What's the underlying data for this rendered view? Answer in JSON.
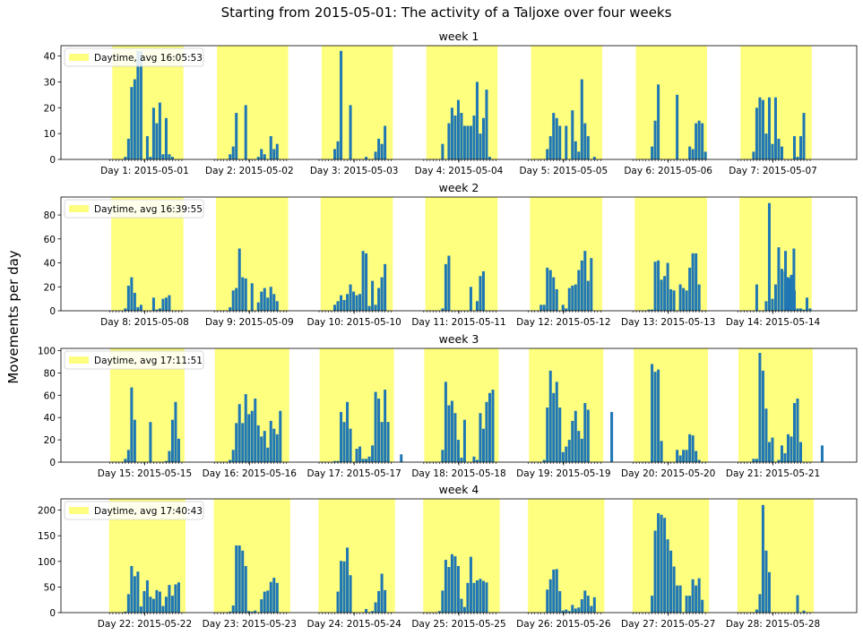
{
  "figure": {
    "suptitle": "Starting from 2015-05-01: The activity of a Taljoxe over four weeks",
    "ylabel": "Movements per day"
  },
  "colors": {
    "bar": "#1f77b4",
    "daytime": "#ffff7f",
    "axis": "#000000"
  },
  "chart_data": [
    {
      "type": "bar",
      "title": "week 1",
      "legend": "Daytime, avg 16:05:53",
      "legend_position": "upper-left",
      "ylim": [
        0,
        44
      ],
      "yticks": [
        0,
        10,
        20,
        30,
        40
      ],
      "xlim": [
        -0.3,
        7.3
      ],
      "xticks": [
        1,
        2,
        3,
        4,
        5,
        6,
        7
      ],
      "xtick_labels": [
        "Day 1: 2015-05-01",
        "Day 2: 2015-05-02",
        "Day 3: 2015-05-03",
        "Day 4: 2015-05-04",
        "Day 5: 2015-05-05",
        "Day 6: 2015-05-06",
        "Day 7: 2015-05-07"
      ],
      "daytime_spans": [
        [
          0.19,
          0.87
        ],
        [
          1.19,
          1.87
        ],
        [
          2.19,
          2.87
        ],
        [
          3.19,
          3.87
        ],
        [
          4.19,
          4.87
        ],
        [
          5.19,
          5.87
        ],
        [
          6.19,
          6.87
        ]
      ],
      "bar_width": 0.03,
      "days": [
        [
          0,
          0,
          0,
          0,
          0,
          1,
          8,
          28,
          31,
          42,
          42,
          0,
          9,
          1,
          20,
          14,
          22,
          2,
          16,
          2,
          1,
          0,
          0,
          0
        ],
        [
          0,
          0,
          0,
          0,
          0,
          2,
          5,
          18,
          0,
          0,
          21,
          0,
          0,
          0,
          1,
          4,
          2,
          0,
          9,
          4,
          6,
          0,
          0,
          0
        ],
        [
          0,
          0,
          0,
          0,
          0,
          4,
          7,
          42,
          0,
          0,
          21,
          0,
          0,
          0,
          0,
          1,
          0,
          0,
          3,
          8,
          6,
          13,
          0,
          0
        ],
        [
          0,
          0,
          0,
          0,
          0,
          0,
          6,
          0,
          14,
          20,
          17,
          23,
          18,
          13,
          13,
          13,
          17,
          30,
          10,
          16,
          27,
          1,
          0,
          0
        ],
        [
          0,
          0,
          0,
          0,
          0,
          0,
          4,
          9,
          18,
          16,
          13,
          0,
          13,
          0,
          19,
          7,
          3,
          31,
          14,
          9,
          0,
          1,
          0,
          0
        ],
        [
          0,
          0,
          0,
          0,
          0,
          0,
          5,
          15,
          29,
          0,
          0,
          0,
          0,
          0,
          25,
          0,
          0,
          0,
          5,
          4,
          14,
          15,
          14,
          3
        ],
        [
          0,
          0,
          0,
          0,
          0,
          3,
          20,
          24,
          23,
          10,
          24,
          6,
          24,
          8,
          5,
          0,
          0,
          0,
          9,
          1,
          9,
          18,
          0,
          0
        ]
      ]
    },
    {
      "type": "bar",
      "title": "week 2",
      "legend": "Daytime, avg 16:39:55",
      "legend_position": "upper-left",
      "ylim": [
        0,
        95
      ],
      "yticks": [
        0,
        20,
        40,
        60,
        80
      ],
      "xlim": [
        -0.3,
        7.3
      ],
      "xticks": [
        1,
        2,
        3,
        4,
        5,
        6,
        7
      ],
      "xtick_labels": [
        "Day 8: 2015-05-08",
        "Day 9: 2015-05-09",
        "Day 10: 2015-05-10",
        "Day 11: 2015-05-11",
        "Day 12: 2015-05-12",
        "Day 13: 2015-05-13",
        "Day 14: 2015-05-14"
      ],
      "daytime_spans": [
        [
          0.18,
          0.87
        ],
        [
          1.18,
          1.87
        ],
        [
          2.18,
          2.87
        ],
        [
          3.18,
          3.87
        ],
        [
          4.18,
          4.87
        ],
        [
          5.18,
          5.87
        ],
        [
          6.18,
          6.87
        ]
      ],
      "bar_width": 0.03,
      "days": [
        [
          0,
          0,
          0,
          0,
          0,
          2,
          21,
          28,
          15,
          3,
          5,
          0,
          0,
          0,
          11,
          1,
          2,
          10,
          11,
          13,
          0,
          0,
          0,
          0
        ],
        [
          0,
          0,
          0,
          0,
          0,
          3,
          17,
          19,
          52,
          28,
          27,
          0,
          23,
          0,
          7,
          16,
          19,
          11,
          20,
          14,
          8,
          0,
          0,
          0
        ],
        [
          0,
          0,
          0,
          0,
          0,
          5,
          8,
          13,
          9,
          14,
          22,
          16,
          13,
          14,
          50,
          48,
          4,
          25,
          5,
          19,
          28,
          39,
          0,
          0
        ],
        [
          0,
          0,
          0,
          0,
          0,
          0,
          2,
          39,
          46,
          0,
          0,
          0,
          0,
          0,
          0,
          20,
          0,
          8,
          29,
          33,
          0,
          0,
          0,
          0
        ],
        [
          0,
          0,
          0,
          0,
          5,
          5,
          36,
          34,
          28,
          18,
          0,
          5,
          2,
          19,
          21,
          22,
          34,
          42,
          50,
          25,
          44,
          0,
          0,
          0
        ],
        [
          0,
          0,
          0,
          0,
          0,
          1,
          1,
          41,
          42,
          26,
          29,
          40,
          18,
          17,
          0,
          22,
          19,
          17,
          36,
          48,
          48,
          22,
          0,
          0
        ],
        [
          0,
          0,
          0,
          0,
          0,
          0,
          22,
          0,
          0,
          8,
          90,
          10,
          22,
          53,
          35,
          33,
          28,
          30,
          17,
          2,
          2,
          1,
          11,
          2
        ]
      ],
      "extra": [
        [
          6.62,
          50
        ],
        [
          6.66,
          27
        ],
        [
          6.7,
          52
        ]
      ]
    },
    {
      "type": "bar",
      "title": "week 3",
      "legend": "Daytime, avg 17:11:51",
      "legend_position": "upper-left",
      "ylim": [
        0,
        102
      ],
      "yticks": [
        0,
        20,
        40,
        60,
        80,
        100
      ],
      "xlim": [
        -0.3,
        7.3
      ],
      "xticks": [
        1,
        2,
        3,
        4,
        5,
        6,
        7
      ],
      "xtick_labels": [
        "Day 15: 2015-05-15",
        "Day 16: 2015-05-16",
        "Day 17: 2015-05-17",
        "Day 18: 2015-05-18",
        "Day 19: 2015-05-19",
        "Day 20: 2015-05-20",
        "Day 21: 2015-05-21"
      ],
      "daytime_spans": [
        [
          0.17,
          0.88
        ],
        [
          1.17,
          1.88
        ],
        [
          2.17,
          2.88
        ],
        [
          3.17,
          3.88
        ],
        [
          4.17,
          4.88
        ],
        [
          5.17,
          5.88
        ],
        [
          6.17,
          6.88
        ]
      ],
      "bar_width": 0.03,
      "days": [
        [
          0,
          0,
          0,
          0,
          0,
          3,
          11,
          67,
          38,
          0,
          0,
          0,
          0,
          36,
          0,
          0,
          0,
          0,
          1,
          10,
          38,
          54,
          21,
          0
        ],
        [
          0,
          0,
          0,
          0,
          0,
          2,
          11,
          35,
          52,
          35,
          61,
          43,
          46,
          57,
          33,
          23,
          28,
          13,
          37,
          30,
          25,
          46,
          0,
          0
        ],
        [
          0,
          0,
          0,
          0,
          0,
          1,
          1,
          45,
          36,
          54,
          30,
          0,
          12,
          14,
          3,
          3,
          5,
          15,
          63,
          57,
          36,
          65,
          36,
          0
        ],
        [
          0,
          0,
          0,
          0,
          0,
          0,
          11,
          72,
          51,
          55,
          44,
          20,
          4,
          38,
          0,
          0,
          5,
          2,
          44,
          30,
          54,
          62,
          65,
          0
        ],
        [
          0,
          0,
          0,
          0,
          0,
          2,
          49,
          82,
          62,
          72,
          49,
          9,
          14,
          20,
          37,
          46,
          28,
          21,
          53,
          47,
          0,
          0,
          0,
          0
        ],
        [
          0,
          0,
          0,
          0,
          0,
          0,
          88,
          81,
          83,
          19,
          0,
          0,
          0,
          0,
          11,
          6,
          11,
          11,
          25,
          24,
          10,
          2,
          0,
          0
        ],
        [
          0,
          0,
          0,
          0,
          0,
          3,
          3,
          98,
          82,
          48,
          18,
          22,
          0,
          2,
          15,
          8,
          25,
          23,
          53,
          57,
          18,
          0,
          0,
          0
        ]
      ],
      "extra": [
        [
          2.95,
          7
        ],
        [
          4.96,
          45
        ],
        [
          6.97,
          15
        ]
      ]
    },
    {
      "type": "bar",
      "title": "week 4",
      "legend": "Daytime, avg 17:40:43",
      "legend_position": "upper-left",
      "ylim": [
        0,
        222
      ],
      "yticks": [
        0,
        50,
        100,
        150,
        200
      ],
      "xlim": [
        -0.3,
        7.3
      ],
      "xticks": [
        1,
        2,
        3,
        4,
        5,
        6,
        7
      ],
      "xtick_labels": [
        "Day 22: 2015-05-22",
        "Day 23: 2015-05-23",
        "Day 24: 2015-05-24",
        "Day 25: 2015-05-25",
        "Day 26: 2015-05-26",
        "Day 27: 2015-05-27",
        "Day 28: 2015-05-28"
      ],
      "daytime_spans": [
        [
          0.16,
          0.89
        ],
        [
          1.16,
          1.89
        ],
        [
          2.16,
          2.89
        ],
        [
          3.16,
          3.89
        ],
        [
          4.16,
          4.89
        ],
        [
          5.16,
          5.89
        ],
        [
          6.16,
          6.89
        ]
      ],
      "bar_width": 0.03,
      "days": [
        [
          0,
          0,
          0,
          0,
          0,
          2,
          36,
          91,
          71,
          80,
          12,
          42,
          63,
          31,
          27,
          44,
          41,
          13,
          31,
          54,
          33,
          55,
          59,
          0
        ],
        [
          0,
          0,
          0,
          0,
          0,
          2,
          14,
          131,
          131,
          121,
          91,
          3,
          2,
          4,
          0,
          26,
          41,
          43,
          60,
          68,
          58,
          0,
          0,
          0
        ],
        [
          0,
          0,
          0,
          0,
          0,
          0,
          41,
          101,
          100,
          127,
          73,
          0,
          0,
          0,
          0,
          7,
          1,
          3,
          20,
          42,
          76,
          44,
          0,
          0
        ],
        [
          0,
          0,
          0,
          0,
          0,
          3,
          43,
          103,
          89,
          114,
          110,
          91,
          27,
          11,
          58,
          109,
          58,
          63,
          66,
          62,
          59,
          0,
          0,
          0
        ],
        [
          0,
          0,
          0,
          0,
          0,
          0,
          45,
          65,
          84,
          85,
          42,
          4,
          6,
          3,
          15,
          8,
          10,
          26,
          43,
          33,
          13,
          30,
          0,
          0
        ],
        [
          0,
          0,
          0,
          0,
          0,
          0,
          33,
          160,
          194,
          191,
          185,
          143,
          121,
          90,
          53,
          53,
          0,
          33,
          33,
          65,
          53,
          67,
          25,
          0
        ],
        [
          0,
          0,
          0,
          0,
          0,
          0,
          6,
          36,
          210,
          121,
          79,
          0,
          0,
          0,
          0,
          0,
          0,
          0,
          0,
          34,
          0,
          4,
          0,
          0
        ]
      ]
    }
  ]
}
